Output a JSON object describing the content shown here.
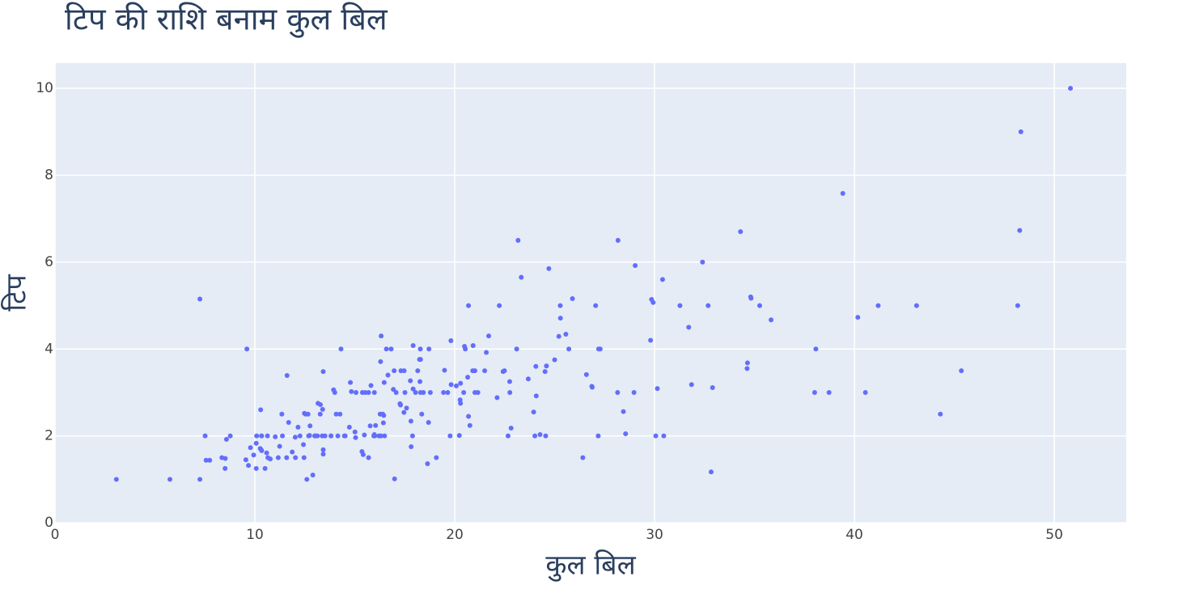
{
  "chart_data": {
    "type": "scatter",
    "title": "टिप की राशि बनाम कुल बिल",
    "x_label": "कुल बिल",
    "y_label": "टिप",
    "series": [
      {
        "color": "#636efa",
        "x": [
          16.99,
          10.34,
          21.01,
          23.68,
          24.59,
          25.29,
          8.77,
          26.88,
          15.04,
          14.78,
          10.27,
          35.26,
          15.42,
          18.43,
          14.83,
          21.58,
          10.33,
          16.29,
          16.97,
          20.65,
          17.92,
          20.29,
          15.77,
          39.42,
          19.82,
          17.81,
          13.37,
          12.69,
          21.7,
          19.65,
          9.55,
          18.35,
          15.06,
          20.69,
          17.78,
          24.06,
          16.31,
          16.93,
          18.69,
          31.27,
          16.04,
          17.46,
          13.94,
          9.68,
          30.4,
          18.29,
          22.23,
          32.4,
          28.55,
          18.04,
          12.54,
          10.29,
          34.81,
          9.94,
          25.56,
          19.49,
          38.01,
          26.41,
          11.24,
          48.27,
          20.29,
          13.81,
          11.02,
          18.29,
          17.59,
          20.08,
          16.45,
          3.07,
          20.23,
          15.01,
          12.02,
          17.07,
          26.86,
          25.28,
          14.73,
          10.51,
          17.92,
          27.2,
          22.76,
          17.29,
          19.44,
          16.66,
          10.07,
          32.68,
          15.98,
          34.83,
          13.03,
          18.28,
          24.71,
          21.16,
          28.97,
          22.49,
          5.75,
          16.32,
          22.75,
          40.17,
          27.28,
          12.03,
          21.01,
          12.46,
          11.35,
          15.38,
          44.3,
          22.42,
          20.92,
          15.36,
          20.49,
          25.21,
          18.24,
          14.31,
          14.0,
          7.25,
          38.07,
          23.95,
          25.71,
          17.31,
          29.93,
          10.65,
          12.43,
          24.08,
          11.69,
          13.42,
          14.26,
          15.95,
          12.48,
          29.8,
          8.52,
          14.52,
          11.38,
          22.82,
          19.08,
          20.27,
          11.17,
          12.26,
          18.26,
          8.51,
          10.33,
          14.15,
          16.0,
          13.16,
          17.47,
          34.3,
          41.19,
          27.05,
          16.43,
          8.35,
          18.64,
          11.87,
          9.78,
          7.51,
          14.07,
          13.13,
          17.26,
          24.55,
          19.77,
          29.85,
          48.17,
          25.0,
          13.39,
          16.49,
          21.5,
          12.66,
          16.21,
          13.81,
          17.51,
          24.52,
          20.76,
          31.71,
          10.59,
          10.63,
          50.81,
          15.81,
          7.25,
          31.85,
          16.82,
          32.9,
          17.89,
          14.48,
          9.6,
          34.63,
          34.65,
          23.33,
          45.35,
          23.17,
          40.55,
          20.69,
          20.9,
          30.46,
          18.15,
          23.1,
          15.69,
          19.81,
          28.44,
          15.48,
          16.58,
          7.56,
          10.34,
          43.11,
          13.0,
          13.51,
          18.71,
          12.74,
          13.0,
          16.4,
          20.53,
          16.47,
          26.59,
          38.73,
          24.27,
          12.76,
          30.06,
          25.89,
          48.33,
          13.27,
          28.17,
          12.9,
          28.15,
          11.59,
          7.74,
          30.14,
          12.16,
          13.42,
          8.58,
          15.98,
          13.42,
          16.27,
          10.09,
          20.45,
          13.28,
          22.12,
          24.01,
          15.69,
          11.61,
          10.77,
          15.53,
          10.07,
          12.6,
          32.83,
          35.83,
          29.03,
          27.18,
          22.67,
          17.82,
          18.78
        ],
        "values": [
          1.01,
          1.66,
          3.5,
          3.31,
          3.61,
          4.71,
          2.0,
          3.12,
          1.96,
          3.23,
          1.71,
          5.0,
          1.57,
          3.0,
          3.02,
          3.92,
          1.67,
          3.71,
          3.5,
          3.35,
          4.08,
          2.75,
          2.23,
          7.58,
          3.18,
          2.34,
          2.0,
          2.0,
          4.3,
          3.0,
          1.45,
          2.5,
          3.0,
          2.45,
          3.27,
          3.6,
          2.0,
          3.07,
          2.31,
          5.0,
          2.24,
          2.54,
          3.06,
          1.32,
          5.6,
          3.0,
          5.0,
          6.0,
          2.05,
          3.0,
          2.5,
          2.6,
          5.2,
          1.56,
          4.34,
          3.51,
          3.0,
          1.5,
          1.76,
          6.73,
          3.21,
          2.0,
          1.98,
          3.76,
          2.64,
          3.15,
          2.47,
          1.0,
          2.01,
          2.09,
          1.97,
          3.0,
          3.14,
          5.0,
          2.2,
          1.25,
          3.08,
          4.0,
          3.0,
          2.71,
          3.0,
          3.4,
          1.83,
          5.0,
          2.03,
          5.17,
          2.0,
          4.0,
          5.85,
          3.0,
          3.0,
          3.5,
          1.0,
          4.3,
          3.25,
          4.73,
          4.0,
          1.5,
          3.0,
          1.5,
          2.5,
          3.0,
          2.5,
          3.48,
          4.08,
          1.64,
          4.06,
          4.29,
          3.76,
          4.0,
          3.0,
          1.0,
          4.0,
          2.55,
          4.0,
          3.5,
          5.07,
          1.5,
          1.8,
          2.92,
          2.31,
          1.68,
          2.5,
          2.0,
          2.52,
          4.2,
          1.48,
          2.0,
          2.0,
          2.18,
          1.5,
          2.83,
          1.5,
          2.0,
          3.25,
          1.25,
          2.0,
          2.0,
          2.0,
          2.75,
          3.5,
          6.7,
          5.0,
          5.0,
          2.3,
          1.5,
          1.36,
          1.63,
          1.73,
          2.0,
          2.5,
          2.0,
          2.74,
          2.0,
          2.0,
          5.14,
          5.0,
          3.75,
          2.61,
          2.0,
          3.5,
          2.5,
          2.0,
          2.0,
          3.0,
          3.48,
          2.24,
          4.5,
          1.61,
          2.0,
          10.0,
          3.16,
          5.15,
          3.18,
          4.0,
          3.11,
          2.0,
          2.0,
          4.0,
          3.55,
          3.68,
          5.65,
          3.5,
          6.5,
          3.0,
          5.0,
          3.5,
          2.0,
          3.5,
          4.0,
          1.5,
          4.19,
          2.56,
          2.02,
          4.0,
          1.44,
          2.0,
          5.0,
          2.0,
          2.0,
          4.0,
          2.01,
          2.0,
          2.5,
          4.0,
          3.23,
          3.41,
          3.0,
          2.03,
          2.23,
          2.0,
          5.16,
          9.0,
          2.5,
          6.5,
          1.1,
          3.0,
          1.5,
          1.44,
          3.09,
          2.2,
          3.48,
          1.92,
          3.0,
          1.58,
          2.5,
          2.0,
          3.0,
          2.72,
          2.88,
          2.0,
          3.0,
          3.39,
          1.47,
          3.0,
          1.25,
          1.0,
          1.17,
          4.67,
          5.92,
          2.0,
          2.0,
          1.75,
          3.0
        ]
      }
    ],
    "xlim": [
      0,
      53.6
    ],
    "xticks": [
      0,
      10,
      20,
      30,
      40,
      50
    ],
    "ylim": [
      0,
      10.58
    ],
    "yticks": [
      0,
      2,
      4,
      6,
      8,
      10
    ],
    "grid": true
  }
}
